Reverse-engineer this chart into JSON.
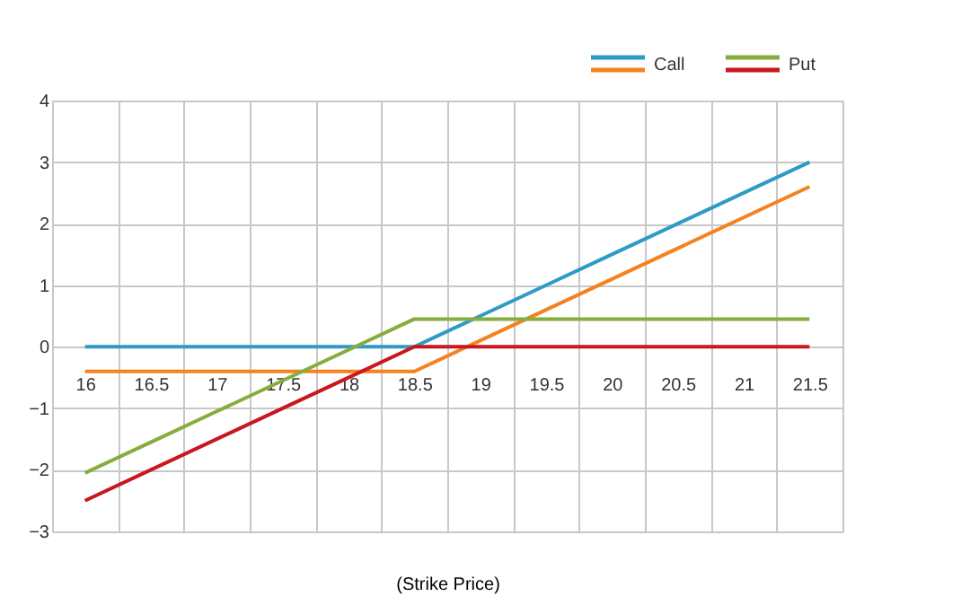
{
  "chart_data": {
    "type": "line",
    "xlabel": "(Strike Price)",
    "categories": [
      "16",
      "16.5",
      "17",
      "17.5",
      "18",
      "18.5",
      "19",
      "19.5",
      "20",
      "20.5",
      "21",
      "21.5"
    ],
    "series": [
      {
        "name": "Call",
        "color": "#2e9bc6",
        "values": [
          0,
          0,
          0,
          0,
          0,
          0,
          0.5,
          1,
          1.5,
          2,
          2.5,
          3
        ]
      },
      {
        "color": "#f58220",
        "values": [
          -0.4,
          -0.4,
          -0.4,
          -0.4,
          -0.4,
          -0.4,
          0.1,
          0.6,
          1.1,
          1.6,
          2.1,
          2.6
        ]
      },
      {
        "name": "Put",
        "color": "#86ad3d",
        "values": [
          -2.05,
          -1.55,
          -1.05,
          -0.55,
          -0.05,
          0.45,
          0.45,
          0.45,
          0.45,
          0.45,
          0.45,
          0.45
        ]
      },
      {
        "color": "#c8171e",
        "values": [
          -2.5,
          -2,
          -1.5,
          -1,
          -0.5,
          0,
          0,
          0,
          0,
          0,
          0,
          0
        ]
      }
    ],
    "ylim": [
      -3,
      4
    ],
    "yticks": [
      -3,
      -2,
      -1,
      0,
      1,
      2,
      3,
      4
    ],
    "grid": true,
    "legend": "top right",
    "marker": "none",
    "line_style": "solid"
  }
}
